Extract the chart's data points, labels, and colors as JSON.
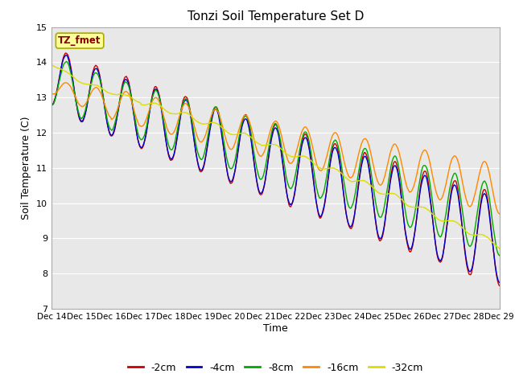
{
  "title": "Tonzi Soil Temperature Set D",
  "xlabel": "Time",
  "ylabel": "Soil Temperature (C)",
  "ylim": [
    7.0,
    15.0
  ],
  "yticks": [
    7.0,
    8.0,
    9.0,
    10.0,
    11.0,
    12.0,
    13.0,
    14.0,
    15.0
  ],
  "xtick_labels": [
    "Dec 14",
    "Dec 15",
    "Dec 16",
    "Dec 17",
    "Dec 18",
    "Dec 19",
    "Dec 20",
    "Dec 21",
    "Dec 22",
    "Dec 23",
    "Dec 24",
    "Dec 25",
    "Dec 26",
    "Dec 27",
    "Dec 28",
    "Dec 29"
  ],
  "series_colors": [
    "#cc0000",
    "#0000cc",
    "#00aa00",
    "#ff8800",
    "#dddd00"
  ],
  "series_labels": [
    "-2cm",
    "-4cm",
    "-8cm",
    "-16cm",
    "-32cm"
  ],
  "legend_label": "TZ_fmet",
  "legend_label_color": "#880000",
  "legend_bg": "#ffff99",
  "legend_border": "#aaaa00",
  "plot_bg": "#e8e8e8",
  "grid_color": "#ffffff",
  "outer_bg": "#ffffff"
}
